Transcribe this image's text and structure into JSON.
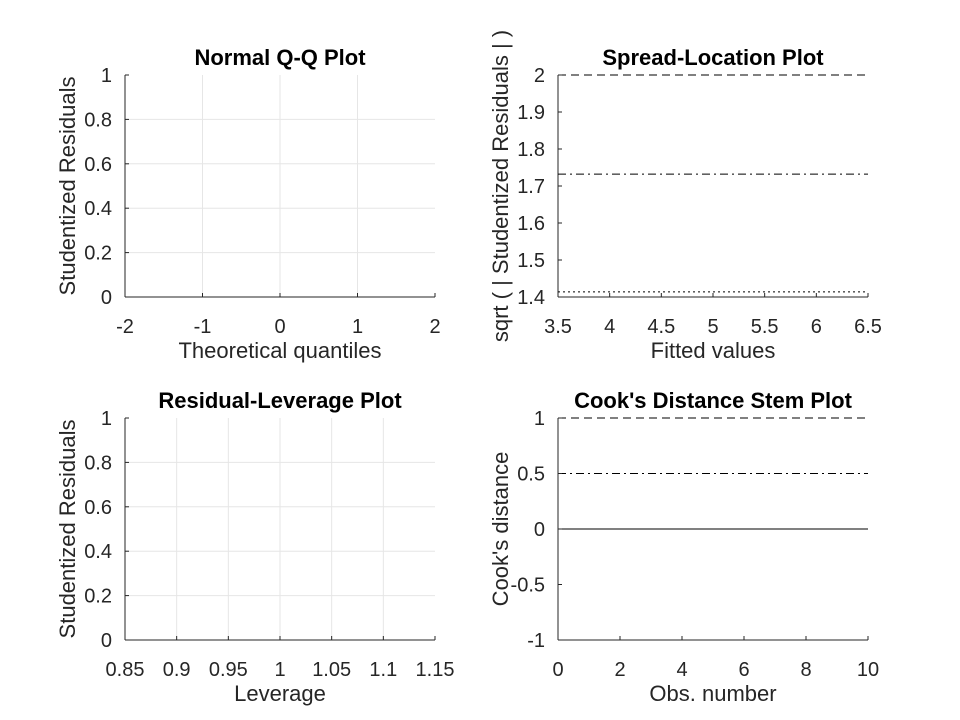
{
  "chart_data": [
    {
      "type": "scatter",
      "title": "Normal Q-Q Plot",
      "xlabel": "Theoretical quantiles",
      "ylabel": "Studentized Residuals",
      "xlim": [
        -2,
        2
      ],
      "ylim": [
        0,
        1
      ],
      "xticks": [
        -2,
        -1,
        0,
        1,
        2
      ],
      "xtick_labels": [
        "-2",
        "-1",
        "0",
        "1",
        "2"
      ],
      "yticks": [
        0,
        0.2,
        0.4,
        0.6,
        0.8,
        1
      ],
      "ytick_labels": [
        "0",
        "0.2",
        "0.4",
        "0.6",
        "0.8",
        "1"
      ],
      "grid": true,
      "series": [],
      "reference_lines": []
    },
    {
      "type": "scatter",
      "title": "Spread-Location Plot",
      "xlabel": "Fitted values",
      "ylabel": "sqrt ( | Studentized Residuals | )",
      "xlim": [
        3.5,
        6.5
      ],
      "ylim": [
        1.4,
        2
      ],
      "xticks": [
        3.5,
        4,
        4.5,
        5,
        5.5,
        6,
        6.5
      ],
      "xtick_labels": [
        "3.5",
        "4",
        "4.5",
        "5",
        "5.5",
        "6",
        "6.5"
      ],
      "yticks": [
        1.4,
        1.5,
        1.6,
        1.7,
        1.8,
        1.9,
        2
      ],
      "ytick_labels": [
        "1.4",
        "1.5",
        "1.6",
        "1.7",
        "1.8",
        "1.9",
        "2"
      ],
      "grid": false,
      "series": [],
      "reference_lines": [
        {
          "y": 2,
          "style": "dashed"
        },
        {
          "y": 1.732,
          "style": "dashdot"
        },
        {
          "y": 1.414,
          "style": "dotted"
        }
      ]
    },
    {
      "type": "scatter",
      "title": "Residual-Leverage Plot",
      "xlabel": "Leverage",
      "ylabel": "Studentized Residuals",
      "xlim": [
        0.85,
        1.15
      ],
      "ylim": [
        0,
        1
      ],
      "xticks": [
        0.85,
        0.9,
        0.95,
        1,
        1.05,
        1.1,
        1.15
      ],
      "xtick_labels": [
        "0.85",
        "0.9",
        "0.95",
        "1",
        "1.05",
        "1.1",
        "1.15"
      ],
      "yticks": [
        0,
        0.2,
        0.4,
        0.6,
        0.8,
        1
      ],
      "ytick_labels": [
        "0",
        "0.2",
        "0.4",
        "0.6",
        "0.8",
        "1"
      ],
      "grid": true,
      "series": [],
      "reference_lines": []
    },
    {
      "type": "stem",
      "title": "Cook's Distance Stem Plot",
      "xlabel": "Obs. number",
      "ylabel": "Cook's distance",
      "xlim": [
        0,
        10
      ],
      "ylim": [
        -1,
        1
      ],
      "xticks": [
        0,
        2,
        4,
        6,
        8,
        10
      ],
      "xtick_labels": [
        "0",
        "2",
        "4",
        "6",
        "8",
        "10"
      ],
      "yticks": [
        -1,
        -0.5,
        0,
        0.5,
        1
      ],
      "ytick_labels": [
        "-1",
        "-0.5",
        "0",
        "0.5",
        "1"
      ],
      "grid": false,
      "series": [],
      "reference_lines": [
        {
          "y": 1,
          "style": "dashed"
        },
        {
          "y": 0.5,
          "style": "dashdot"
        },
        {
          "y": 0,
          "style": "solid"
        }
      ]
    }
  ]
}
